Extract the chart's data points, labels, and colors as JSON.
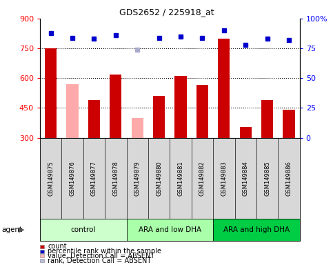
{
  "title": "GDS2652 / 225918_at",
  "samples": [
    "GSM149875",
    "GSM149876",
    "GSM149877",
    "GSM149878",
    "GSM149879",
    "GSM149880",
    "GSM149881",
    "GSM149882",
    "GSM149883",
    "GSM149884",
    "GSM149885",
    "GSM149886"
  ],
  "bar_values": [
    750,
    570,
    490,
    620,
    400,
    510,
    610,
    565,
    800,
    355,
    490,
    440
  ],
  "bar_absent": [
    false,
    true,
    false,
    false,
    true,
    false,
    false,
    false,
    false,
    false,
    false,
    false
  ],
  "percentile_ranks": [
    88,
    84,
    83,
    86,
    74,
    84,
    85,
    84,
    90,
    78,
    83,
    82
  ],
  "rank_absent": [
    false,
    false,
    false,
    false,
    true,
    false,
    false,
    false,
    false,
    false,
    false,
    false
  ],
  "bar_color_present": "#cc0000",
  "bar_color_absent": "#ffaaaa",
  "rank_color_present": "#0000cc",
  "rank_color_absent": "#aaaacc",
  "ylim_left": [
    300,
    900
  ],
  "ylim_right": [
    0,
    100
  ],
  "yticks_left": [
    300,
    450,
    600,
    750,
    900
  ],
  "yticks_right": [
    0,
    25,
    50,
    75,
    100
  ],
  "groups": [
    {
      "label": "control",
      "start": 0,
      "end": 3,
      "color": "#ccffcc"
    },
    {
      "label": "ARA and low DHA",
      "start": 4,
      "end": 7,
      "color": "#aaffaa"
    },
    {
      "label": "ARA and high DHA",
      "start": 8,
      "end": 11,
      "color": "#00cc44"
    }
  ],
  "legend_items": [
    {
      "label": "count",
      "color": "#cc0000"
    },
    {
      "label": "percentile rank within the sample",
      "color": "#0000cc"
    },
    {
      "label": "value, Detection Call = ABSENT",
      "color": "#ffbbbb"
    },
    {
      "label": "rank, Detection Call = ABSENT",
      "color": "#bbbbdd"
    }
  ],
  "bar_width": 0.55,
  "dotted_gridlines": [
    450,
    600,
    750
  ],
  "agent_label": "agent"
}
